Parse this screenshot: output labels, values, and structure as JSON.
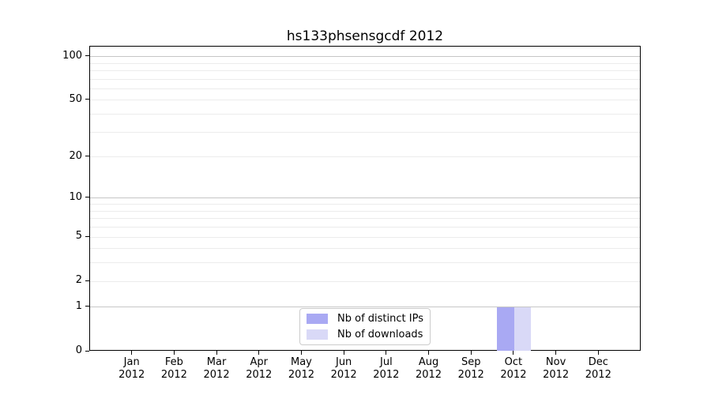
{
  "chart_data": {
    "type": "bar",
    "title": "hs133phsensgcdf 2012",
    "x_categories": [
      "Jan",
      "Feb",
      "Mar",
      "Apr",
      "May",
      "Jun",
      "Jul",
      "Aug",
      "Sep",
      "Oct",
      "Nov",
      "Dec"
    ],
    "x_sublabel": "2012",
    "series": [
      {
        "name": "Nb of distinct IPs",
        "color": "#a9a9f3",
        "values": [
          0,
          0,
          0,
          0,
          0,
          0,
          0,
          0,
          0,
          1,
          0,
          0
        ]
      },
      {
        "name": "Nb of downloads",
        "color": "#d9d9f7",
        "values": [
          0,
          0,
          0,
          0,
          0,
          0,
          0,
          0,
          0,
          1,
          0,
          0
        ]
      }
    ],
    "yscale": "log1p",
    "ylim": [
      0,
      117
    ],
    "ytick_values": [
      0,
      1,
      2,
      5,
      10,
      20,
      50,
      100
    ],
    "ytick_labels": [
      "0",
      "1",
      "2",
      "5",
      "10",
      "20",
      "50",
      "100"
    ],
    "grid": {
      "major_values": [
        1,
        10,
        100
      ],
      "minor_values": [
        2,
        3,
        4,
        5,
        6,
        7,
        8,
        9,
        20,
        30,
        40,
        50,
        60,
        70,
        80,
        90
      ],
      "major_color": "#c6c6c6",
      "minor_color": "#ececec"
    },
    "legend": {
      "position": "lower center",
      "entries": [
        "Nb of distinct IPs",
        "Nb of downloads"
      ]
    },
    "axis_color": "#000000",
    "background_color": "#ffffff"
  }
}
